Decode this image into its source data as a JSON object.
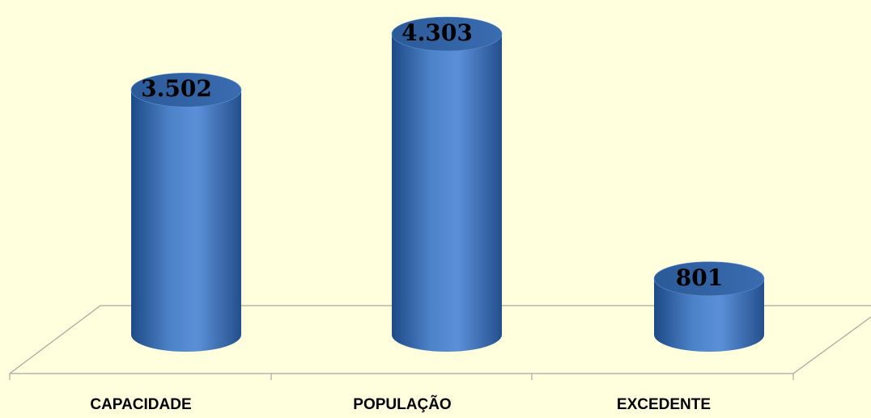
{
  "chart_data": {
    "type": "bar",
    "categories": [
      "CAPACIDADE",
      "POPULAÇÃO",
      "EXCEDENTE"
    ],
    "values": [
      3502,
      4303,
      801
    ],
    "value_labels": [
      "3.502",
      "4.303",
      "801"
    ],
    "title": "",
    "xlabel": "",
    "ylabel": "",
    "ylim": [
      0,
      4303
    ],
    "grid": false,
    "legend": "none",
    "style": "3d-cylinder"
  },
  "colors": {
    "background": "#FFFFDD",
    "bar_dark": "#1F4E8C",
    "bar_mid": "#4A7FC4",
    "bar_light": "#5B8FD6",
    "bar_top": "#2E5E9E",
    "floor_line": "#A6A6A6",
    "text": "#000000"
  }
}
